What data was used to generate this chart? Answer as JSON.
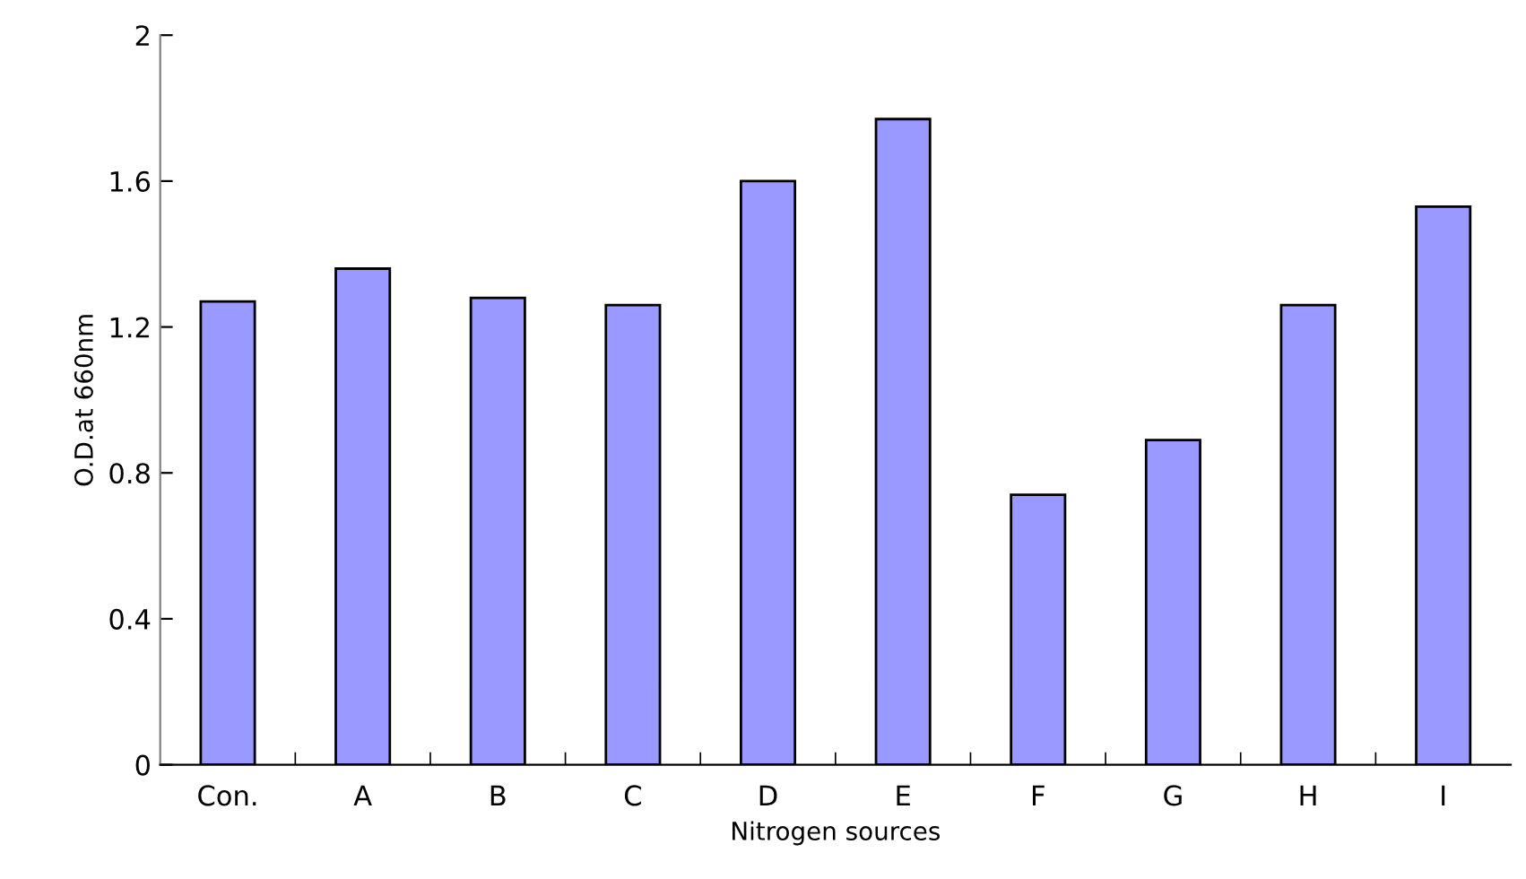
{
  "chart_data": {
    "type": "bar",
    "xlabel": "Nitrogen sources",
    "ylabel": "O.D.at 660nm",
    "categories": [
      "Con.",
      "A",
      "B",
      "C",
      "D",
      "E",
      "F",
      "G",
      "H",
      "I"
    ],
    "values": [
      1.27,
      1.36,
      1.28,
      1.26,
      1.6,
      1.77,
      0.74,
      0.89,
      1.26,
      1.53
    ],
    "color": "#9999ff",
    "ylim": [
      0,
      2
    ],
    "yticks": [
      {
        "value": 0,
        "label": "0"
      },
      {
        "value": 0.4,
        "label": "0.4"
      },
      {
        "value": 0.8,
        "label": "0.8"
      },
      {
        "value": 1.2,
        "label": "1.2"
      },
      {
        "value": 1.6,
        "label": "1.6"
      },
      {
        "value": 2,
        "label": "2"
      }
    ],
    "grid": false
  }
}
